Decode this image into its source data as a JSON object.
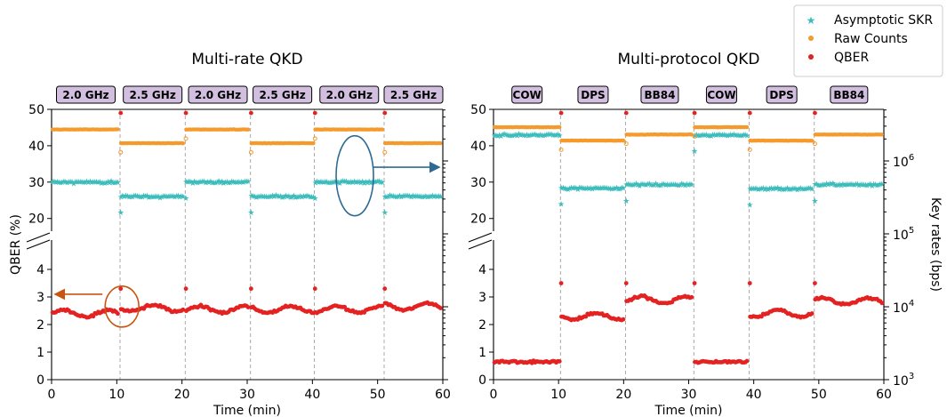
{
  "chart_data": [
    {
      "type": "scatter",
      "title": "Multi-rate QKD",
      "xlabel": "Time (min)",
      "ylabel": "QBER (%)",
      "xlim": [
        0,
        60
      ],
      "xticks": [
        "0",
        "10",
        "20",
        "30",
        "40",
        "50",
        "60"
      ],
      "ylim_upper": [
        17,
        50
      ],
      "ylim_lower": [
        0,
        5
      ],
      "yticks_upper": [
        "20",
        "30",
        "40",
        "50"
      ],
      "yticks_lower": [
        "0",
        "1",
        "2",
        "3",
        "4"
      ],
      "segments": [
        {
          "label": "2.0 GHz",
          "start": 0,
          "end": 10.5
        },
        {
          "label": "2.5 GHz",
          "start": 10.5,
          "end": 20.5
        },
        {
          "label": "2.0 GHz",
          "start": 20.5,
          "end": 30.5
        },
        {
          "label": "2.5 GHz",
          "start": 30.5,
          "end": 40.3
        },
        {
          "label": "2.0 GHz",
          "start": 40.3,
          "end": 51
        },
        {
          "label": "2.5 GHz",
          "start": 51,
          "end": 60
        }
      ],
      "series": [
        {
          "name": "Asymptotic SKR",
          "axis": "right",
          "segment_levels_bps": [
            520000,
            330000,
            520000,
            330000,
            520000,
            330000
          ]
        },
        {
          "name": "Raw Counts",
          "axis": "right",
          "segment_levels_bps": [
            2700000,
            1750000,
            2700000,
            1750000,
            2700000,
            1750000
          ]
        },
        {
          "name": "QBER",
          "axis": "left",
          "segment_levels_pct": [
            2.4,
            2.6,
            2.55,
            2.55,
            2.55,
            2.65
          ]
        }
      ],
      "annotations": [
        "left arrow at QBER ≈ 3.1 pointing to QBER axis",
        "right arrow at SKR ≈ 8e5 pointing to key-rate axis"
      ]
    },
    {
      "type": "scatter",
      "title": "Multi-protocol QKD",
      "xlabel": "Time (min)",
      "ylabel": "Key rates (bps)",
      "xlim": [
        0,
        60
      ],
      "xticks": [
        "0",
        "10",
        "20",
        "30",
        "40",
        "50",
        "60"
      ],
      "y_scale": "log",
      "right_ylim": [
        1000,
        5000000
      ],
      "yticks_right": [
        "10^3",
        "10^4",
        "10^5",
        "10^6"
      ],
      "segments": [
        {
          "label": "COW",
          "start": 0,
          "end": 10.3
        },
        {
          "label": "DPS",
          "start": 10.3,
          "end": 20.3
        },
        {
          "label": "BB84",
          "start": 20.3,
          "end": 30.8
        },
        {
          "label": "COW",
          "start": 30.8,
          "end": 39.3
        },
        {
          "label": "DPS",
          "start": 39.3,
          "end": 49.3
        },
        {
          "label": "BB84",
          "start": 49.3,
          "end": 60
        }
      ],
      "series": [
        {
          "name": "Asymptotic SKR",
          "axis": "right",
          "segment_levels_bps": [
            2300000,
            430000,
            480000,
            2300000,
            420000,
            480000
          ]
        },
        {
          "name": "Raw Counts",
          "axis": "right",
          "segment_levels_bps": [
            2900000,
            1900000,
            2300000,
            2900000,
            1900000,
            2300000
          ]
        },
        {
          "name": "QBER",
          "axis": "left",
          "segment_levels_pct": [
            0.65,
            2.3,
            2.9,
            0.65,
            2.4,
            2.85
          ]
        }
      ]
    }
  ],
  "legend": {
    "position": "top-right",
    "items": [
      {
        "label": "Asymptotic SKR",
        "marker": "star",
        "color": "#3dbcbc"
      },
      {
        "label": "Raw Counts",
        "marker": "dot",
        "color": "#f59a2b"
      },
      {
        "label": "QBER",
        "marker": "dot",
        "color": "#e42222"
      }
    ]
  },
  "colors": {
    "skr": "#3dbcbc",
    "raw": "#f59a2b",
    "qber": "#e42222",
    "segment_box": "#d2bfe0",
    "left_arrow": "#c8550f",
    "right_arrow": "#2e6b93"
  }
}
